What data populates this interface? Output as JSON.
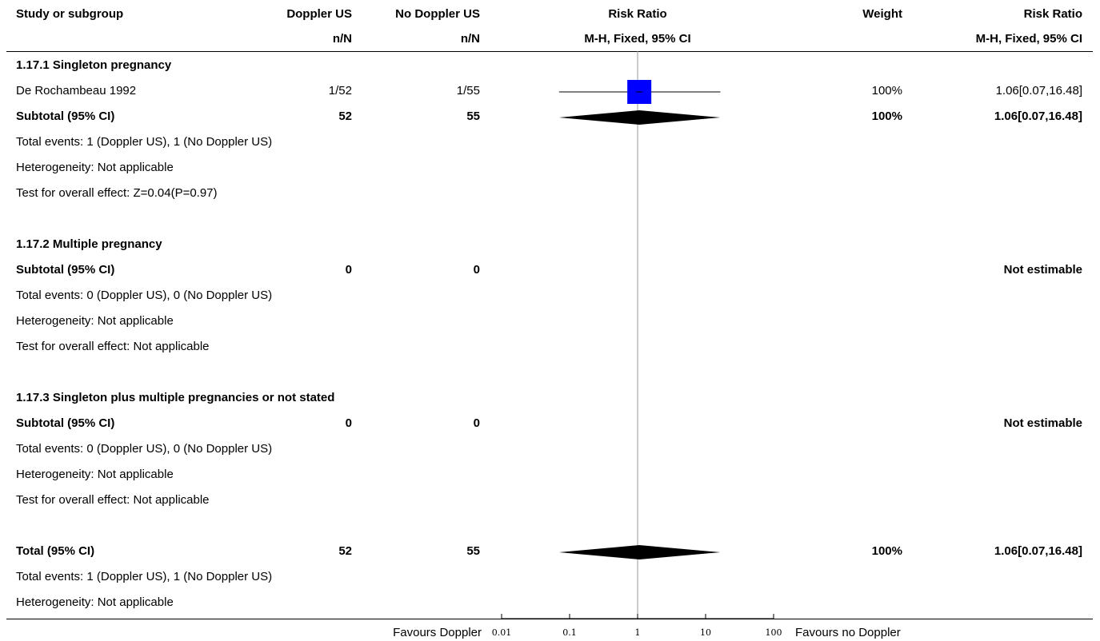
{
  "header": {
    "study_col": "Study or subgroup",
    "exp_col": "Doppler US",
    "ctrl_col": "No Doppler US",
    "exp_sub": "n/N",
    "ctrl_sub": "n/N",
    "plot_col": "Risk Ratio",
    "plot_sub": "M-H, Fixed, 95% CI",
    "weight_col": "Weight",
    "rr_col": "Risk Ratio",
    "rr_sub": "M-H, Fixed, 95% CI"
  },
  "rows": [
    {
      "kind": "group",
      "label": "1.17.1 Singleton pregnancy"
    },
    {
      "kind": "study",
      "label": "De Rochambeau 1992",
      "exp": "1/52",
      "ctrl": "1/55",
      "weight": "100%",
      "rr": "1.06[0.07,16.48]"
    },
    {
      "kind": "subtotal",
      "label": "Subtotal (95% CI)",
      "exp": "52",
      "ctrl": "55",
      "weight": "100%",
      "rr": "1.06[0.07,16.48]"
    },
    {
      "kind": "note",
      "label": "Total events: 1 (Doppler US), 1 (No Doppler US)"
    },
    {
      "kind": "note",
      "label": "Heterogeneity: Not applicable"
    },
    {
      "kind": "note",
      "label": "Test for overall effect: Z=0.04(P=0.97)"
    },
    {
      "kind": "blank",
      "label": ""
    },
    {
      "kind": "group",
      "label": "1.17.2 Multiple pregnancy"
    },
    {
      "kind": "subtotal",
      "label": "Subtotal (95% CI)",
      "exp": "0",
      "ctrl": "0",
      "weight": "",
      "rr": "Not estimable"
    },
    {
      "kind": "note",
      "label": "Total events: 0 (Doppler US), 0 (No Doppler US)"
    },
    {
      "kind": "note",
      "label": "Heterogeneity: Not applicable"
    },
    {
      "kind": "note",
      "label": "Test for overall effect: Not applicable"
    },
    {
      "kind": "blank",
      "label": ""
    },
    {
      "kind": "group",
      "label": "1.17.3 Singleton plus multiple pregnancies or not stated"
    },
    {
      "kind": "subtotal",
      "label": "Subtotal (95% CI)",
      "exp": "0",
      "ctrl": "0",
      "weight": "",
      "rr": "Not estimable"
    },
    {
      "kind": "note",
      "label": "Total events: 0 (Doppler US), 0 (No Doppler US)"
    },
    {
      "kind": "note",
      "label": "Heterogeneity: Not applicable"
    },
    {
      "kind": "note",
      "label": "Test for overall effect: Not applicable"
    },
    {
      "kind": "blank",
      "label": ""
    },
    {
      "kind": "subtotal",
      "label": "Total (95% CI)",
      "exp": "52",
      "ctrl": "55",
      "weight": "100%",
      "rr": "1.06[0.07,16.48]"
    },
    {
      "kind": "note",
      "label": "Total events: 1 (Doppler US), 1 (No Doppler US)"
    },
    {
      "kind": "note",
      "label": "Heterogeneity: Not applicable"
    }
  ],
  "footer": {
    "favours_left": "Favours Doppler",
    "favours_right": "Favours no Doppler"
  },
  "colors": {
    "square": "#0000ff",
    "diamond": "#000000",
    "line": "#000000",
    "nullline": "#999999"
  },
  "chart_data": {
    "type": "forest",
    "scale": "log",
    "xlim": [
      0.01,
      100
    ],
    "ticks": [
      0.01,
      0.1,
      1,
      10,
      100
    ],
    "tick_labels": [
      "0.01",
      "0.1",
      "1",
      "10",
      "100"
    ],
    "null_value": 1,
    "estimates": [
      {
        "label": "De Rochambeau 1992",
        "kind": "study",
        "est": 1.06,
        "lo": 0.07,
        "hi": 16.48,
        "row": 1
      },
      {
        "label": "Subtotal (95% CI)",
        "kind": "diamond",
        "est": 1.06,
        "lo": 0.07,
        "hi": 16.48,
        "row": 2
      },
      {
        "label": "Total (95% CI)",
        "kind": "diamond",
        "est": 1.06,
        "lo": 0.07,
        "hi": 16.48,
        "row": 19
      }
    ]
  }
}
